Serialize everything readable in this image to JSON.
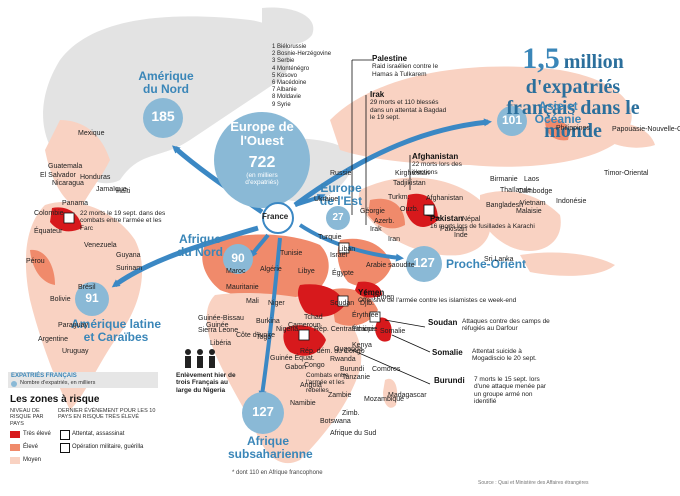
{
  "title": {
    "number": "1,5",
    "text_line1": "million d'expatriés",
    "text_line2": "français dans le monde"
  },
  "colors": {
    "high": "#d7191c",
    "medium": "#f08a6b",
    "low": "#f9d2c2",
    "land": "#e3e3e3",
    "sea": "#ffffff",
    "bubble": "#8ab9d6",
    "arrow": "#3b88c4",
    "region_text": "#3a86b8"
  },
  "center": {
    "label": "France"
  },
  "regions": {
    "ameriques_nord": {
      "name": "Amérique du Nord",
      "value": "185"
    },
    "europe_ouest": {
      "name": "Europe de l'Ouest",
      "value": "722",
      "unit": "(en milliers d'expatriés)"
    },
    "europe_est": {
      "name": "Europe de l'Est",
      "value": "27"
    },
    "asie": {
      "name": "Asie et Océanie",
      "value": "101"
    },
    "afrique_nord": {
      "name": "Afrique du Nord",
      "value": "90"
    },
    "proche_orient": {
      "name": "Proche-Orient",
      "value": "127"
    },
    "amerique_latine": {
      "name": "Amérique latine et Caraïbes",
      "value": "91"
    },
    "afrique_sub": {
      "name": "Afrique subsaharienne",
      "value": "127",
      "footnote": "* dont 110 en Afrique francophone"
    }
  },
  "europe_list": [
    "1 Biélorussie",
    "2 Bosnie-Herzégovine",
    "3 Serbie",
    "4 Monténégro",
    "5 Kosovo",
    "6 Macédoine",
    "7 Albanie",
    "8 Moldavie",
    "9 Syrie"
  ],
  "countries": [
    "Mexique",
    "Guatemala",
    "El Salvador",
    "Nicaragua",
    "Honduras",
    "Jamaïque",
    "Haïti",
    "Panama",
    "Colombie",
    "Équateur",
    "Pérou",
    "Venezuela",
    "Guyana",
    "Surinam",
    "Brésil",
    "Bolivie",
    "Paraguay",
    "Argentine",
    "Uruguay",
    "Russie",
    "Ukraine",
    "Turquie",
    "Liban",
    "Israël",
    "Égypte",
    "Irak",
    "Iran",
    "Arabie saoudite",
    "Kirghizstan",
    "Tadjikistan",
    "Turkm.",
    "Azerb.",
    "Géorgie",
    "Ouzb.",
    "Népal",
    "Inde",
    "Bangladesh",
    "Birmanie",
    "Laos",
    "Thaïlande",
    "Cambodge",
    "Vietnam",
    "Malaisie",
    "Indonésie",
    "Philippines",
    "Papouasie-Nouvelle-Guinée",
    "Timor-Oriental",
    "Sri Lanka",
    "Pakistan",
    "Afghanistan",
    "Maroc",
    "Algérie",
    "Tunisie",
    "Libye",
    "Mauritanie",
    "Mali",
    "Niger",
    "Tchad",
    "Soudan",
    "Érythrée",
    "Éthiopie",
    "Somalie",
    "Kenya",
    "Ouganda",
    "Rwanda",
    "Burundi",
    "Tanzanie",
    "Guinée-Bissau",
    "Guinée",
    "Sierra Leone",
    "Libéria",
    "Côte d'Ivoire",
    "Burkina",
    "Togo",
    "Nigeria",
    "Cameroun",
    "Rép. Centrafricaine",
    "Guinée Équat.",
    "Gabon",
    "Congo",
    "Angola",
    "Zambie",
    "Zimb.",
    "Mozambique",
    "Botswana",
    "Namibie",
    "Afrique du Sud",
    "Madagascar",
    "Comores",
    "Djib.",
    "Yémen",
    "Rép. dém. du Congo"
  ],
  "annotations": {
    "palestine": {
      "title": "Palestine",
      "text": "Raid israélien contre le Hamas à Tulkarem"
    },
    "irak": {
      "title": "Irak",
      "text": "29 morts et 110 blessés dans un attentat à Bagdad le 19 sept."
    },
    "afghanistan": {
      "title": "Afghanistan",
      "text": "22 morts lors des élections"
    },
    "pakistan": {
      "title": "Pakistan",
      "text": "16 morts lors de fusillades à Karachi"
    },
    "colombie": {
      "text": "22 morts le 19 sept. dans des combats entre l'armée et les Farc"
    },
    "yemen": {
      "title": "Yémen",
      "text": "Offensive de l'armée contre les islamistes ce week-end"
    },
    "soudan": {
      "title": "Soudan",
      "text": "Attaques contre des camps de réfugiés au Darfour"
    },
    "somalie": {
      "title": "Somalie",
      "text": "Attentat suicide à Mogadiscio le 20 sept."
    },
    "burundi": {
      "title": "Burundi",
      "text": "7 morts le 15 sept. lors d'une attaque menée par un groupe armé non identifié"
    },
    "rdc": {
      "text": "Combats entre l'armée et les rebelles"
    },
    "nigeria": {
      "text": "Enlèvement hier de trois Français au large du Nigeria"
    }
  },
  "legend": {
    "expat_label": "EXPATRIÉS FRANÇAIS",
    "expat_item": "Nombre d'expatriés, en milliers",
    "risk_title": "Les zones à risque",
    "risk_col1": "NIVEAU DE RISQUE PAR PAYS",
    "risk_col2": "DERNIER ÉVÉNEMENT POUR LES 10 PAYS EN RISQUE TRÈS ÉLEVÉ",
    "levels": [
      "Très élevé",
      "Élevé",
      "Moyen"
    ],
    "events": [
      "Attentat, assassinat",
      "Opération militaire, guérilla"
    ]
  },
  "source": "Source : Quai et Ministère des Affaires étrangères"
}
